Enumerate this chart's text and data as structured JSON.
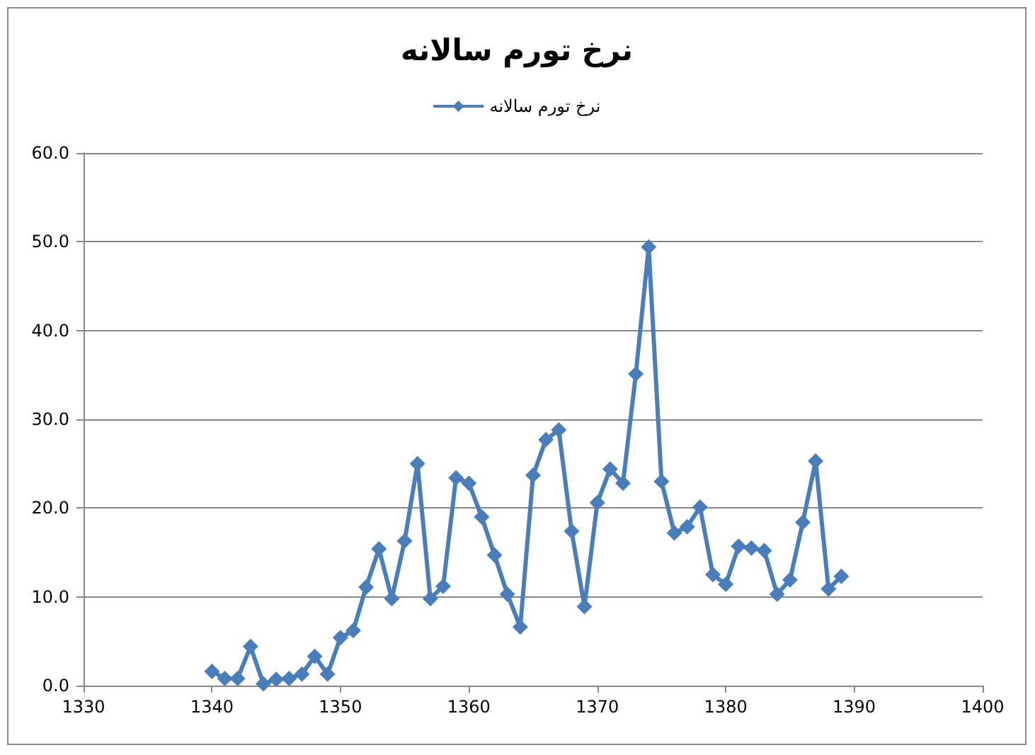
{
  "chart_data": {
    "type": "line",
    "title": "نرخ تورم سالانه",
    "x": [
      1340,
      1341,
      1342,
      1343,
      1344,
      1345,
      1346,
      1347,
      1348,
      1349,
      1350,
      1351,
      1352,
      1353,
      1354,
      1355,
      1356,
      1357,
      1358,
      1359,
      1360,
      1361,
      1362,
      1363,
      1364,
      1365,
      1366,
      1367,
      1368,
      1369,
      1370,
      1371,
      1372,
      1373,
      1374,
      1375,
      1376,
      1377,
      1378,
      1379,
      1380,
      1381,
      1382,
      1383,
      1384,
      1385,
      1386,
      1387,
      1388,
      1389
    ],
    "series": [
      {
        "name": "نرخ تورم سالانه",
        "color": "#4a7ebb",
        "values": [
          1.6,
          0.8,
          0.8,
          4.4,
          0.2,
          0.7,
          0.8,
          1.3,
          3.3,
          1.3,
          5.4,
          6.2,
          11.1,
          15.4,
          9.8,
          16.3,
          25.0,
          9.8,
          11.2,
          23.4,
          22.8,
          19.0,
          14.7,
          10.3,
          6.6,
          23.7,
          27.7,
          28.8,
          17.4,
          8.9,
          20.6,
          24.4,
          22.8,
          35.1,
          49.4,
          23.0,
          17.2,
          17.9,
          20.1,
          12.5,
          11.4,
          15.7,
          15.5,
          15.2,
          10.3,
          11.9,
          18.4,
          25.3,
          10.9,
          12.3
        ]
      }
    ],
    "xlim": [
      1330,
      1400
    ],
    "xticks": [
      1330,
      1340,
      1350,
      1360,
      1370,
      1380,
      1390,
      1400
    ],
    "ylim": [
      0,
      60
    ],
    "yticks": [
      {
        "value": 0,
        "label": "0.0"
      },
      {
        "value": 10,
        "label": "10.0"
      },
      {
        "value": 20,
        "label": "20.0"
      },
      {
        "value": 30,
        "label": "30.0"
      },
      {
        "value": 40,
        "label": "40.0"
      },
      {
        "value": 50,
        "label": "50.0"
      },
      {
        "value": 60,
        "label": "60.0"
      }
    ],
    "grid": "y",
    "legend": "top",
    "marker": "diamond",
    "line_style": "solid"
  }
}
